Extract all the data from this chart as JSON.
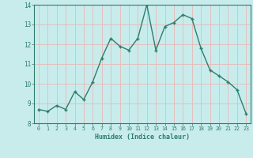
{
  "x": [
    0,
    1,
    2,
    3,
    4,
    5,
    6,
    7,
    8,
    9,
    10,
    11,
    12,
    13,
    14,
    15,
    16,
    17,
    18,
    19,
    20,
    21,
    22,
    23
  ],
  "y": [
    8.7,
    8.6,
    8.9,
    8.7,
    9.6,
    9.2,
    10.1,
    11.3,
    12.3,
    11.9,
    11.7,
    12.3,
    14.0,
    11.7,
    12.9,
    13.1,
    13.5,
    13.3,
    11.8,
    10.7,
    10.4,
    10.1,
    9.7,
    8.5
  ],
  "xlabel": "Humidex (Indice chaleur)",
  "ylim": [
    8,
    14
  ],
  "xlim": [
    -0.5,
    23.5
  ],
  "line_color": "#2e7d6e",
  "bg_color": "#c8ecec",
  "grid_color": "#e8b8b8",
  "yticks": [
    8,
    9,
    10,
    11,
    12,
    13,
    14
  ],
  "xtick_labels": [
    "0",
    "1",
    "2",
    "3",
    "4",
    "5",
    "6",
    "7",
    "8",
    "9",
    "10",
    "11",
    "12",
    "13",
    "14",
    "15",
    "16",
    "17",
    "18",
    "19",
    "20",
    "21",
    "22",
    "23"
  ],
  "tick_color": "#2e7d6e",
  "label_color": "#2e7d6e"
}
